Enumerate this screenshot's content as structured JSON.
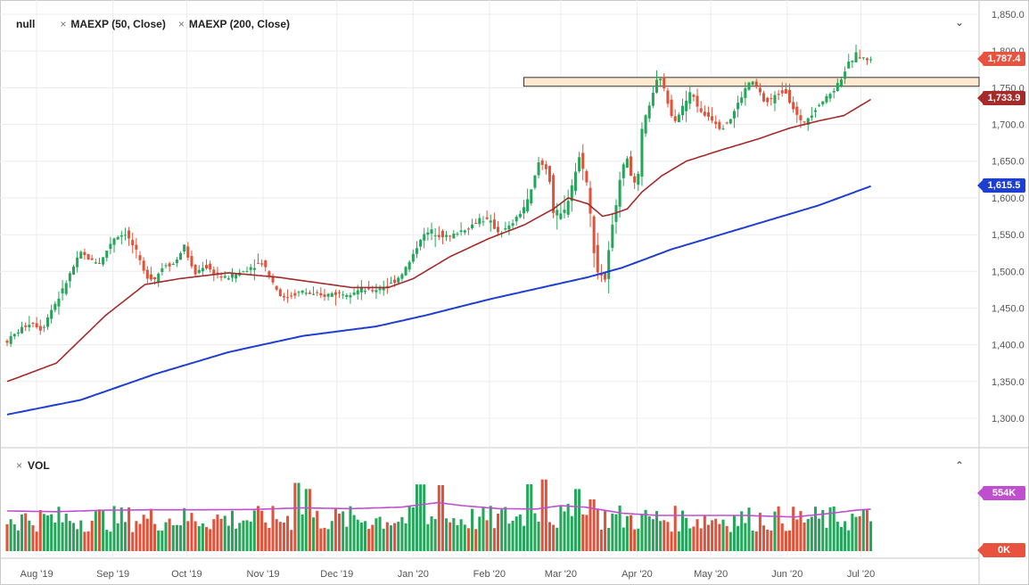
{
  "legend": {
    "symbol": "null",
    "ma1": "MAEXP (50, Close)",
    "ma2": "MAEXP (200, Close)",
    "remove_glyph": "×"
  },
  "volume_pane": {
    "label": "VOL",
    "remove_glyph": "×"
  },
  "controls": {
    "collapse_main": "⌄",
    "collapse_volume": "⌃"
  },
  "tags": {
    "price_last": "1,787.4",
    "ma50_last": "1,733.9",
    "ma200_last": "1,615.5",
    "vol_ma_last": "554K",
    "vol_zero": "0K"
  },
  "colors": {
    "up": "#26a65b",
    "down": "#e0523a",
    "ma50": "#a52a2a",
    "ma200": "#1f3fd1",
    "vol_ma": "#c04fd0",
    "zone_fill": "#fde9cf",
    "tag_price": "#e8533f",
    "tag_ma50": "#a52a2a",
    "tag_ma200": "#1f3fd1",
    "tag_vol": "#c04fd0",
    "tag_zero": "#e8533f"
  },
  "chart_data": {
    "type": "candlestick",
    "y_ticks": [
      "1,850.0",
      "1,800.0",
      "1,750.0",
      "1,700.0",
      "1,650.0",
      "1,600.0",
      "1,550.0",
      "1,500.0",
      "1,450.0",
      "1,400.0",
      "1,350.0",
      "1,300.0"
    ],
    "y_tick_values": [
      1850,
      1800,
      1750,
      1700,
      1650,
      1600,
      1550,
      1500,
      1450,
      1400,
      1350,
      1300
    ],
    "ylim": [
      1280,
      1850
    ],
    "x_labels": [
      "Aug '19",
      "Sep '19",
      "Oct '19",
      "Nov '19",
      "Dec '19",
      "Jan '20",
      "Feb '20",
      "Mar '20",
      "Apr '20",
      "May '20",
      "Jun '20",
      "Jul '20"
    ],
    "x_label_days": [
      12,
      43,
      73,
      104,
      134,
      165,
      196,
      225,
      256,
      286,
      317,
      347
    ],
    "xlim": [
      0,
      395
    ],
    "support_zone": {
      "from_day": 210,
      "to_day": 395,
      "low": 1752,
      "high": 1764
    },
    "price_anchors": [
      [
        0,
        1405
      ],
      [
        5,
        1420
      ],
      [
        10,
        1432
      ],
      [
        14,
        1420
      ],
      [
        18,
        1448
      ],
      [
        22,
        1470
      ],
      [
        26,
        1500
      ],
      [
        30,
        1525
      ],
      [
        34,
        1515
      ],
      [
        38,
        1512
      ],
      [
        43,
        1545
      ],
      [
        48,
        1552
      ],
      [
        52,
        1530
      ],
      [
        56,
        1495
      ],
      [
        60,
        1490
      ],
      [
        64,
        1510
      ],
      [
        68,
        1510
      ],
      [
        72,
        1535
      ],
      [
        76,
        1495
      ],
      [
        80,
        1508
      ],
      [
        84,
        1498
      ],
      [
        88,
        1490
      ],
      [
        92,
        1495
      ],
      [
        96,
        1500
      ],
      [
        100,
        1508
      ],
      [
        104,
        1512
      ],
      [
        108,
        1485
      ],
      [
        112,
        1462
      ],
      [
        116,
        1468
      ],
      [
        120,
        1473
      ],
      [
        124,
        1468
      ],
      [
        128,
        1466
      ],
      [
        132,
        1470
      ],
      [
        136,
        1470
      ],
      [
        140,
        1472
      ],
      [
        144,
        1475
      ],
      [
        148,
        1473
      ],
      [
        152,
        1478
      ],
      [
        156,
        1483
      ],
      [
        160,
        1495
      ],
      [
        164,
        1515
      ],
      [
        168,
        1545
      ],
      [
        172,
        1555
      ],
      [
        176,
        1550
      ],
      [
        180,
        1547
      ],
      [
        184,
        1555
      ],
      [
        188,
        1560
      ],
      [
        192,
        1572
      ],
      [
        196,
        1568
      ],
      [
        200,
        1552
      ],
      [
        204,
        1560
      ],
      [
        208,
        1577
      ],
      [
        212,
        1598
      ],
      [
        216,
        1648
      ],
      [
        220,
        1640
      ],
      [
        222,
        1580
      ],
      [
        226,
        1575
      ],
      [
        230,
        1625
      ],
      [
        233,
        1660
      ],
      [
        236,
        1612
      ],
      [
        238,
        1540
      ],
      [
        240,
        1500
      ],
      [
        243,
        1490
      ],
      [
        246,
        1560
      ],
      [
        249,
        1630
      ],
      [
        252,
        1655
      ],
      [
        254,
        1625
      ],
      [
        256,
        1610
      ],
      [
        258,
        1690
      ],
      [
        260,
        1718
      ],
      [
        263,
        1745
      ],
      [
        265,
        1770
      ],
      [
        268,
        1735
      ],
      [
        271,
        1705
      ],
      [
        274,
        1720
      ],
      [
        278,
        1745
      ],
      [
        282,
        1715
      ],
      [
        286,
        1710
      ],
      [
        290,
        1695
      ],
      [
        294,
        1708
      ],
      [
        298,
        1735
      ],
      [
        302,
        1760
      ],
      [
        305,
        1750
      ],
      [
        308,
        1728
      ],
      [
        312,
        1738
      ],
      [
        316,
        1748
      ],
      [
        320,
        1718
      ],
      [
        323,
        1700
      ],
      [
        326,
        1712
      ],
      [
        330,
        1728
      ],
      [
        334,
        1740
      ],
      [
        337,
        1752
      ],
      [
        340,
        1770
      ],
      [
        342,
        1782
      ],
      [
        345,
        1795
      ],
      [
        348,
        1790
      ],
      [
        351,
        1787
      ]
    ],
    "ma50_anchors": [
      [
        0,
        1350
      ],
      [
        20,
        1375
      ],
      [
        40,
        1440
      ],
      [
        56,
        1482
      ],
      [
        70,
        1490
      ],
      [
        90,
        1498
      ],
      [
        110,
        1492
      ],
      [
        125,
        1485
      ],
      [
        140,
        1478
      ],
      [
        155,
        1478
      ],
      [
        165,
        1490
      ],
      [
        180,
        1520
      ],
      [
        196,
        1545
      ],
      [
        210,
        1563
      ],
      [
        222,
        1585
      ],
      [
        228,
        1600
      ],
      [
        236,
        1592
      ],
      [
        242,
        1575
      ],
      [
        246,
        1578
      ],
      [
        252,
        1585
      ],
      [
        258,
        1608
      ],
      [
        266,
        1630
      ],
      [
        276,
        1650
      ],
      [
        290,
        1665
      ],
      [
        305,
        1680
      ],
      [
        318,
        1695
      ],
      [
        330,
        1705
      ],
      [
        340,
        1712
      ],
      [
        351,
        1734
      ]
    ],
    "ma200_anchors": [
      [
        0,
        1305
      ],
      [
        30,
        1325
      ],
      [
        60,
        1360
      ],
      [
        90,
        1390
      ],
      [
        120,
        1412
      ],
      [
        150,
        1425
      ],
      [
        170,
        1440
      ],
      [
        196,
        1462
      ],
      [
        220,
        1480
      ],
      [
        236,
        1492
      ],
      [
        250,
        1505
      ],
      [
        270,
        1530
      ],
      [
        290,
        1550
      ],
      [
        310,
        1570
      ],
      [
        330,
        1590
      ],
      [
        351,
        1616
      ]
    ],
    "volume": {
      "ylim": [
        0,
        1000000
      ],
      "ma_anchors": [
        [
          0,
          530000
        ],
        [
          20,
          520000
        ],
        [
          40,
          540000
        ],
        [
          60,
          545000
        ],
        [
          80,
          545000
        ],
        [
          100,
          550000
        ],
        [
          120,
          570000
        ],
        [
          140,
          560000
        ],
        [
          160,
          580000
        ],
        [
          175,
          640000
        ],
        [
          185,
          600000
        ],
        [
          200,
          560000
        ],
        [
          215,
          555000
        ],
        [
          225,
          600000
        ],
        [
          235,
          580000
        ],
        [
          250,
          500000
        ],
        [
          265,
          470000
        ],
        [
          280,
          470000
        ],
        [
          300,
          470000
        ],
        [
          320,
          450000
        ],
        [
          335,
          500000
        ],
        [
          345,
          540000
        ],
        [
          351,
          554000
        ]
      ],
      "spikes": [
        [
          118,
          900000
        ],
        [
          122,
          820000
        ],
        [
          168,
          880000
        ],
        [
          176,
          870000
        ],
        [
          212,
          840000
        ],
        [
          218,
          900000
        ],
        [
          232,
          780000
        ],
        [
          238,
          650000
        ]
      ]
    }
  }
}
